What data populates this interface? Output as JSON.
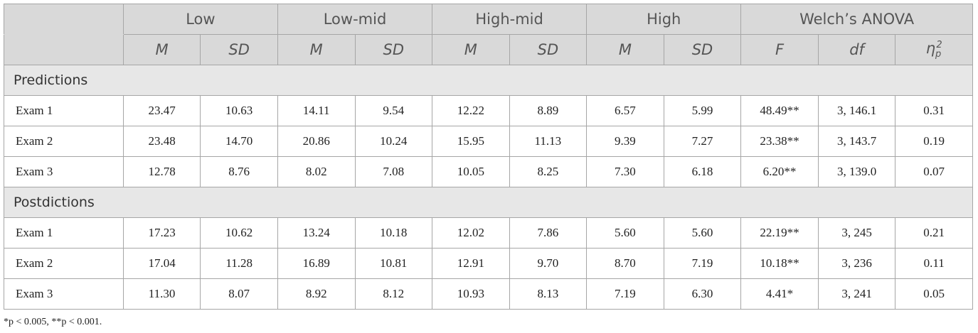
{
  "table": {
    "groups": [
      "Low",
      "Low-mid",
      "High-mid",
      "High",
      "Welch’s ANOVA"
    ],
    "subheaders": [
      "M",
      "SD",
      "M",
      "SD",
      "M",
      "SD",
      "M",
      "SD",
      "F",
      "df",
      {
        "symbol": "η",
        "sub": "p",
        "sup": "2"
      }
    ],
    "sections": [
      {
        "title": "Predictions",
        "rows": [
          [
            "Exam 1",
            "23.47",
            "10.63",
            "14.11",
            "9.54",
            "12.22",
            "8.89",
            "6.57",
            "5.99",
            "48.49**",
            "3, 146.1",
            "0.31"
          ],
          [
            "Exam 2",
            "23.48",
            "14.70",
            "20.86",
            "10.24",
            "15.95",
            "11.13",
            "9.39",
            "7.27",
            "23.38**",
            "3, 143.7",
            "0.19"
          ],
          [
            "Exam 3",
            "12.78",
            "8.76",
            "8.02",
            "7.08",
            "10.05",
            "8.25",
            "7.30",
            "6.18",
            "6.20**",
            "3, 139.0",
            "0.07"
          ]
        ]
      },
      {
        "title": "Postdictions",
        "rows": [
          [
            "Exam 1",
            "17.23",
            "10.62",
            "13.24",
            "10.18",
            "12.02",
            "7.86",
            "5.60",
            "5.60",
            "22.19**",
            "3, 245",
            "0.21"
          ],
          [
            "Exam 2",
            "17.04",
            "11.28",
            "16.89",
            "10.81",
            "12.91",
            "9.70",
            "8.70",
            "7.19",
            "10.18**",
            "3, 236",
            "0.11"
          ],
          [
            "Exam 3",
            "11.30",
            "8.07",
            "8.92",
            "8.12",
            "10.93",
            "8.13",
            "7.19",
            "6.30",
            "4.41*",
            "3, 241",
            "0.05"
          ]
        ]
      }
    ]
  },
  "footnote": "*p < 0.005, **p < 0.001."
}
